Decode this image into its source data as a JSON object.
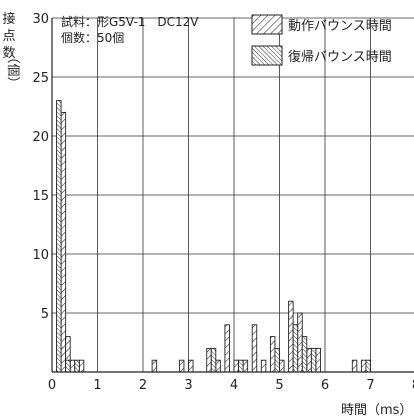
{
  "chart_data": {
    "type": "bar",
    "title": "",
    "xlabel": "時間（ms）",
    "ylabel": [
      "接",
      "点",
      "数",
      "（個）"
    ],
    "xlim": [
      0,
      8
    ],
    "ylim": [
      0,
      30
    ],
    "x_ticks": [
      0,
      1,
      2,
      3,
      4,
      5,
      6,
      7,
      8
    ],
    "y_ticks": [
      0,
      5,
      10,
      15,
      20,
      25,
      30
    ],
    "grid": true,
    "bin_width": 0.1,
    "info_lines": [
      "試料：形G5V-1　DC12V",
      "個数：50個"
    ],
    "legend_position": "top-right",
    "series": [
      {
        "name": "動作バウンス時間",
        "pattern": "light-diagonal",
        "bins": [
          {
            "x": 0.2,
            "value": 22
          },
          {
            "x": 0.3,
            "value": 3
          },
          {
            "x": 0.4,
            "value": 1
          },
          {
            "x": 0.6,
            "value": 1
          },
          {
            "x": 2.2,
            "value": 1
          },
          {
            "x": 2.8,
            "value": 1
          },
          {
            "x": 3.0,
            "value": 1
          },
          {
            "x": 3.4,
            "value": 2
          },
          {
            "x": 3.6,
            "value": 1
          },
          {
            "x": 3.8,
            "value": 4
          },
          {
            "x": 4.0,
            "value": 1
          },
          {
            "x": 4.2,
            "value": 1
          },
          {
            "x": 4.4,
            "value": 4
          },
          {
            "x": 4.6,
            "value": 1
          },
          {
            "x": 4.8,
            "value": 3
          },
          {
            "x": 5.0,
            "value": 1
          },
          {
            "x": 5.2,
            "value": 6
          },
          {
            "x": 5.4,
            "value": 5
          },
          {
            "x": 5.6,
            "value": 2
          },
          {
            "x": 5.8,
            "value": 2
          },
          {
            "x": 6.6,
            "value": 1
          },
          {
            "x": 6.8,
            "value": 1
          }
        ]
      },
      {
        "name": "復帰バウンス時間",
        "pattern": "dense-diagonal",
        "bins": [
          {
            "x": 0.1,
            "value": 23
          },
          {
            "x": 0.3,
            "value": 1
          },
          {
            "x": 0.5,
            "value": 1
          },
          {
            "x": 3.5,
            "value": 2
          },
          {
            "x": 4.1,
            "value": 1
          },
          {
            "x": 4.9,
            "value": 2
          },
          {
            "x": 5.3,
            "value": 4
          },
          {
            "x": 5.5,
            "value": 3
          },
          {
            "x": 5.7,
            "value": 2
          },
          {
            "x": 6.9,
            "value": 1
          }
        ]
      }
    ]
  }
}
